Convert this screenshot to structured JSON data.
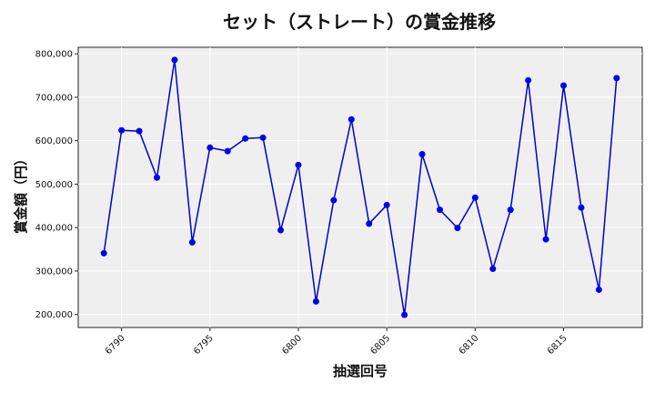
{
  "chart_data": {
    "type": "line",
    "title": "セット（ストレート）の賞金推移",
    "xlabel": "抽選回号",
    "ylabel": "賞金額（円）",
    "x": [
      6789,
      6790,
      6791,
      6792,
      6793,
      6794,
      6795,
      6796,
      6797,
      6798,
      6799,
      6800,
      6801,
      6802,
      6803,
      6804,
      6805,
      6806,
      6807,
      6808,
      6809,
      6810,
      6811,
      6812,
      6813,
      6814,
      6815,
      6816,
      6817,
      6818
    ],
    "values": [
      341000,
      624000,
      622000,
      515000,
      786000,
      366000,
      584000,
      576000,
      605000,
      607000,
      394000,
      544000,
      230000,
      463000,
      649000,
      409000,
      452000,
      199000,
      569000,
      441000,
      399000,
      469000,
      305000,
      441000,
      739000,
      373000,
      727000,
      446000,
      257000,
      744000
    ],
    "xlim": [
      6787.55,
      6819.45
    ],
    "ylim": [
      170000,
      815000
    ],
    "x_ticks": [
      "6790",
      "6795",
      "6800",
      "6805",
      "6810",
      "6815"
    ],
    "y_ticks": [
      "200,000",
      "300,000",
      "400,000",
      "500,000",
      "600,000",
      "700,000",
      "800,000"
    ],
    "grid": true,
    "line_color": "#0000cc",
    "marker_color": "#0000ee",
    "plot_background": "#efefef"
  }
}
